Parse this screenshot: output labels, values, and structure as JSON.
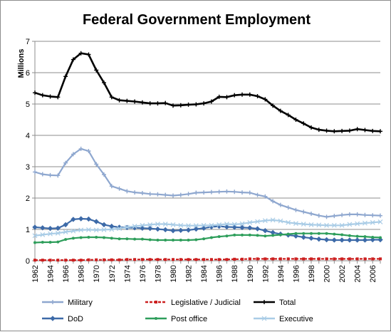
{
  "chart_data": {
    "type": "line",
    "title": "Federal Government Employment",
    "ylabel": "Millions",
    "xlabel": "",
    "ylim": [
      0,
      7
    ],
    "yticks": [
      "0",
      "1",
      "2",
      "3",
      "4",
      "5",
      "6",
      "7"
    ],
    "grid": "horizontal",
    "legend_position": "bottom",
    "x": [
      1962,
      1963,
      1964,
      1965,
      1966,
      1967,
      1968,
      1969,
      1970,
      1971,
      1972,
      1973,
      1974,
      1975,
      1976,
      1977,
      1978,
      1979,
      1980,
      1981,
      1982,
      1983,
      1984,
      1985,
      1986,
      1987,
      1988,
      1989,
      1990,
      1991,
      1992,
      1993,
      1994,
      1995,
      1996,
      1997,
      1998,
      1999,
      2000,
      2001,
      2002,
      2003,
      2004,
      2005,
      2006,
      2007
    ],
    "xtick_labels": [
      "1962",
      "1964",
      "1966",
      "1968",
      "1970",
      "1972",
      "1974",
      "1976",
      "1978",
      "1980",
      "1982",
      "1984",
      "1986",
      "1988",
      "1990",
      "1992",
      "1994",
      "1996",
      "1998",
      "2000",
      "2002",
      "2004",
      "2006"
    ],
    "series": [
      {
        "name": "Military",
        "color": "#8ea7cf",
        "marker": "plus",
        "values": [
          2.83,
          2.76,
          2.73,
          2.72,
          3.12,
          3.4,
          3.57,
          3.5,
          3.08,
          2.75,
          2.38,
          2.3,
          2.22,
          2.18,
          2.16,
          2.13,
          2.12,
          2.1,
          2.08,
          2.1,
          2.13,
          2.17,
          2.18,
          2.19,
          2.2,
          2.21,
          2.2,
          2.18,
          2.17,
          2.1,
          2.05,
          1.9,
          1.78,
          1.7,
          1.62,
          1.56,
          1.5,
          1.44,
          1.4,
          1.43,
          1.46,
          1.48,
          1.48,
          1.46,
          1.45,
          1.44
        ]
      },
      {
        "name": "Legislative / Judicial",
        "color": "#cc1f1f",
        "marker": "square",
        "values": [
          0.02,
          0.02,
          0.02,
          0.02,
          0.02,
          0.02,
          0.02,
          0.03,
          0.03,
          0.03,
          0.03,
          0.03,
          0.04,
          0.04,
          0.04,
          0.04,
          0.04,
          0.04,
          0.04,
          0.04,
          0.04,
          0.04,
          0.04,
          0.04,
          0.04,
          0.04,
          0.05,
          0.05,
          0.06,
          0.06,
          0.06,
          0.06,
          0.06,
          0.06,
          0.06,
          0.06,
          0.06,
          0.06,
          0.06,
          0.06,
          0.06,
          0.06,
          0.06,
          0.06,
          0.06,
          0.06
        ]
      },
      {
        "name": "Total",
        "color": "#000000",
        "marker": "plus",
        "values": [
          5.36,
          5.28,
          5.24,
          5.22,
          5.88,
          6.42,
          6.62,
          6.58,
          6.08,
          5.68,
          5.22,
          5.12,
          5.1,
          5.08,
          5.05,
          5.02,
          5.02,
          5.03,
          4.95,
          4.96,
          4.98,
          4.99,
          5.02,
          5.08,
          5.23,
          5.22,
          5.28,
          5.3,
          5.3,
          5.25,
          5.15,
          4.95,
          4.78,
          4.65,
          4.5,
          4.38,
          4.25,
          4.18,
          4.15,
          4.13,
          4.14,
          4.15,
          4.2,
          4.17,
          4.14,
          4.13
        ]
      },
      {
        "name": "DoD",
        "color": "#3d6aa8",
        "marker": "diamond",
        "values": [
          1.07,
          1.05,
          1.03,
          1.04,
          1.15,
          1.32,
          1.34,
          1.33,
          1.25,
          1.15,
          1.1,
          1.07,
          1.06,
          1.05,
          1.04,
          1.03,
          1.01,
          0.99,
          0.96,
          0.97,
          0.98,
          1.01,
          1.04,
          1.08,
          1.1,
          1.08,
          1.07,
          1.06,
          1.05,
          1.02,
          0.96,
          0.9,
          0.85,
          0.82,
          0.79,
          0.75,
          0.72,
          0.69,
          0.67,
          0.66,
          0.66,
          0.66,
          0.66,
          0.66,
          0.67,
          0.67
        ]
      },
      {
        "name": "Post office",
        "color": "#2e9e5b",
        "marker": "circle",
        "values": [
          0.58,
          0.59,
          0.59,
          0.6,
          0.68,
          0.72,
          0.74,
          0.75,
          0.75,
          0.74,
          0.72,
          0.7,
          0.7,
          0.69,
          0.69,
          0.67,
          0.66,
          0.66,
          0.66,
          0.66,
          0.66,
          0.67,
          0.7,
          0.74,
          0.77,
          0.79,
          0.82,
          0.82,
          0.82,
          0.81,
          0.79,
          0.81,
          0.83,
          0.85,
          0.87,
          0.87,
          0.87,
          0.87,
          0.87,
          0.85,
          0.83,
          0.8,
          0.78,
          0.77,
          0.75,
          0.74
        ]
      },
      {
        "name": "Executive",
        "color": "#a9cce6",
        "marker": "x",
        "values": [
          0.8,
          0.83,
          0.86,
          0.88,
          0.92,
          0.95,
          0.98,
          0.99,
          0.98,
          0.99,
          1.0,
          1.03,
          1.07,
          1.1,
          1.13,
          1.15,
          1.17,
          1.17,
          1.15,
          1.13,
          1.12,
          1.12,
          1.13,
          1.13,
          1.15,
          1.17,
          1.16,
          1.18,
          1.22,
          1.25,
          1.28,
          1.3,
          1.27,
          1.22,
          1.19,
          1.17,
          1.15,
          1.14,
          1.13,
          1.13,
          1.13,
          1.16,
          1.18,
          1.2,
          1.22,
          1.24
        ]
      }
    ]
  }
}
